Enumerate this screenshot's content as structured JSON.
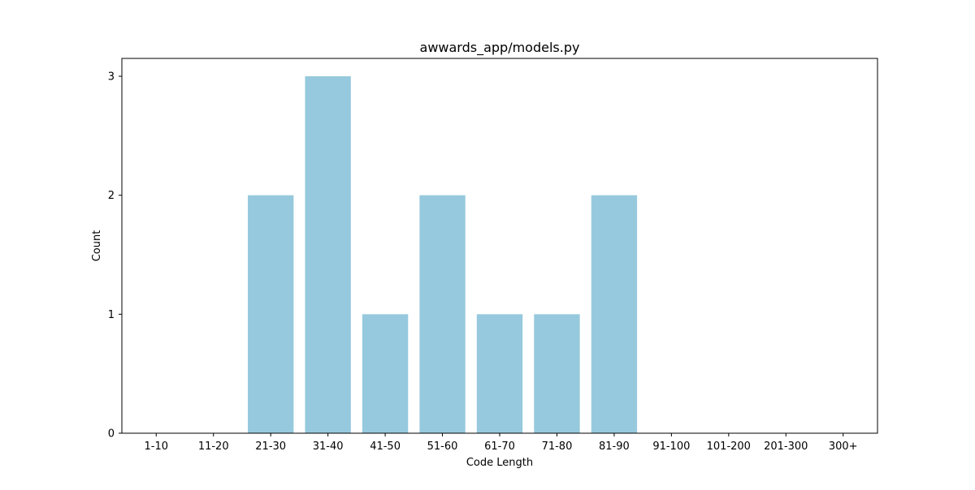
{
  "chart_data": {
    "type": "bar",
    "title": "awwards_app/models.py",
    "xlabel": "Code Length",
    "ylabel": "Count",
    "categories": [
      "1-10",
      "11-20",
      "21-30",
      "31-40",
      "41-50",
      "51-60",
      "61-70",
      "71-80",
      "81-90",
      "91-100",
      "101-200",
      "201-300",
      "300+"
    ],
    "values": [
      0,
      0,
      2,
      3,
      1,
      2,
      1,
      1,
      2,
      0,
      0,
      0,
      0
    ],
    "ylim": [
      0,
      3.15
    ],
    "yticks": [
      0,
      1,
      2,
      3
    ],
    "bar_color": "#96c9dd",
    "grid": false,
    "legend": "none"
  }
}
